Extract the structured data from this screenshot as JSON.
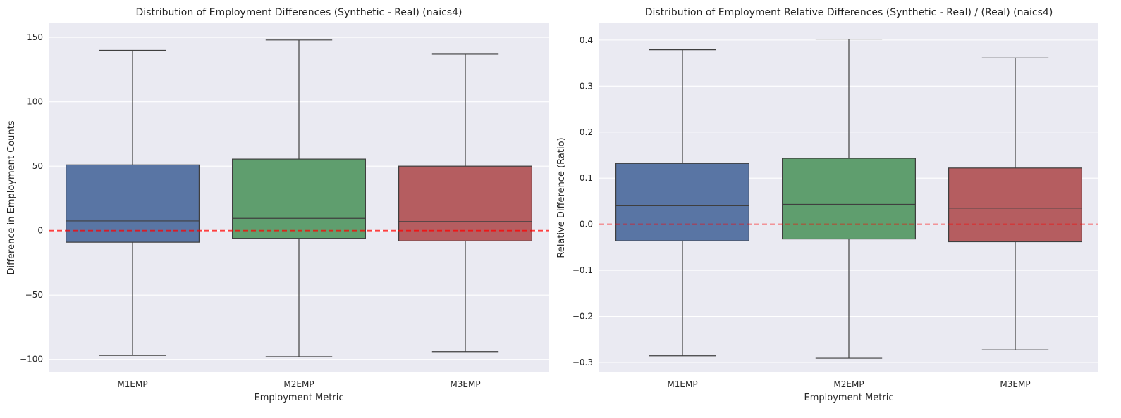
{
  "chart_data": [
    {
      "type": "box",
      "title": "Distribution of Employment Differences (Synthetic - Real) (naics4)",
      "xlabel": "Employment Metric",
      "ylabel": "Difference in Employment Counts",
      "categories": [
        "M1EMP",
        "M2EMP",
        "M3EMP"
      ],
      "ylim": [
        -110,
        161
      ],
      "yticks": [
        -100,
        -50,
        0,
        50,
        100,
        150
      ],
      "ytick_labels": [
        "−100",
        "−50",
        "0",
        "50",
        "100",
        "150"
      ],
      "reference_line": 0,
      "series": [
        {
          "category": "M1EMP",
          "whisker_low": -97,
          "q1": -9,
          "median": 7.5,
          "q3": 51,
          "whisker_high": 140,
          "color": "#5975a4"
        },
        {
          "category": "M2EMP",
          "whisker_low": -98,
          "q1": -6,
          "median": 9.5,
          "q3": 55.5,
          "whisker_high": 148,
          "color": "#5f9e6e"
        },
        {
          "category": "M3EMP",
          "whisker_low": -94,
          "q1": -8,
          "median": 7,
          "q3": 50,
          "whisker_high": 137,
          "color": "#b55d60"
        }
      ],
      "grid": true
    },
    {
      "type": "box",
      "title": "Distribution of Employment Relative Differences (Synthetic - Real) / (Real) (naics4)",
      "xlabel": "Employment Metric",
      "ylabel": "Relative Difference (Ratio)",
      "categories": [
        "M1EMP",
        "M2EMP",
        "M3EMP"
      ],
      "ylim": [
        -0.3215,
        0.4365
      ],
      "yticks": [
        -0.3,
        -0.2,
        -0.1,
        0.0,
        0.1,
        0.2,
        0.3,
        0.4
      ],
      "ytick_labels": [
        "−0.3",
        "−0.2",
        "−0.1",
        "0.0",
        "0.1",
        "0.2",
        "0.3",
        "0.4"
      ],
      "reference_line": 0,
      "series": [
        {
          "category": "M1EMP",
          "whisker_low": -0.286,
          "q1": -0.036,
          "median": 0.04,
          "q3": 0.132,
          "whisker_high": 0.379,
          "color": "#5975a4"
        },
        {
          "category": "M2EMP",
          "whisker_low": -0.291,
          "q1": -0.032,
          "median": 0.043,
          "q3": 0.143,
          "whisker_high": 0.402,
          "color": "#5f9e6e"
        },
        {
          "category": "M3EMP",
          "whisker_low": -0.273,
          "q1": -0.038,
          "median": 0.035,
          "q3": 0.122,
          "whisker_high": 0.361,
          "color": "#b55d60"
        }
      ],
      "grid": true
    }
  ],
  "colors": {
    "plot_background": "#eaeaf2",
    "grid": "#ffffff",
    "reference_line": "#ff0000",
    "box_edge": "#3f3f3f"
  }
}
